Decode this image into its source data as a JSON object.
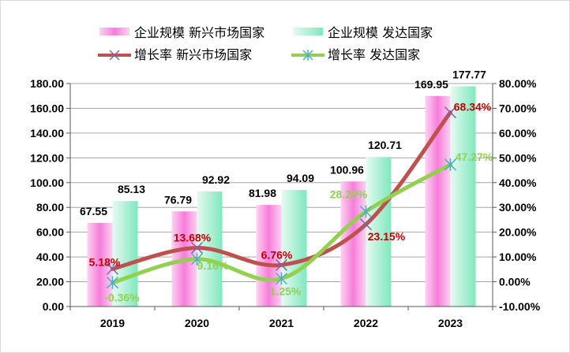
{
  "chart_data": {
    "type": "bar+line",
    "categories": [
      "2019",
      "2020",
      "2021",
      "2022",
      "2023"
    ],
    "bar_series": [
      {
        "name": "企业规模 新兴市场国家",
        "values": [
          67.55,
          76.79,
          81.98,
          100.96,
          169.95
        ],
        "color": "#f56fd4"
      },
      {
        "name": "企业规模 发达国家",
        "values": [
          85.13,
          92.92,
          94.09,
          120.71,
          177.77
        ],
        "color": "#7ee8bf"
      }
    ],
    "line_series": [
      {
        "name": "增长率 新兴市场国家",
        "values": [
          5.18,
          13.68,
          6.76,
          23.15,
          68.34
        ],
        "labels": [
          "5.18%",
          "13.68%",
          "6.76%",
          "23.15%",
          "68.34%"
        ],
        "color": "#c0504d",
        "label_color": "#c00000",
        "marker": "x",
        "marker_color": "#8064a2"
      },
      {
        "name": "增长率 发达国家",
        "values": [
          -0.36,
          9.16,
          1.25,
          28.29,
          47.27
        ],
        "labels": [
          "-0.36%",
          "9.16%",
          "1.25%",
          "28.29%",
          "47.27%"
        ],
        "color": "#92d050",
        "label_color": "#92d050",
        "marker": "asterisk",
        "marker_color": "#4bacc6"
      }
    ],
    "y_left": {
      "range": [
        0,
        180
      ],
      "ticks": [
        "0.00",
        "20.00",
        "40.00",
        "60.00",
        "80.00",
        "100.00",
        "120.00",
        "140.00",
        "160.00",
        "180.00"
      ]
    },
    "y_right": {
      "range": [
        -10,
        80
      ],
      "ticks": [
        "-10.00%",
        "0.00%",
        "10.00%",
        "20.00%",
        "30.00%",
        "40.00%",
        "50.00%",
        "60.00%",
        "70.00%",
        "80.00%"
      ]
    },
    "grid": true,
    "legend_placement": "top"
  }
}
